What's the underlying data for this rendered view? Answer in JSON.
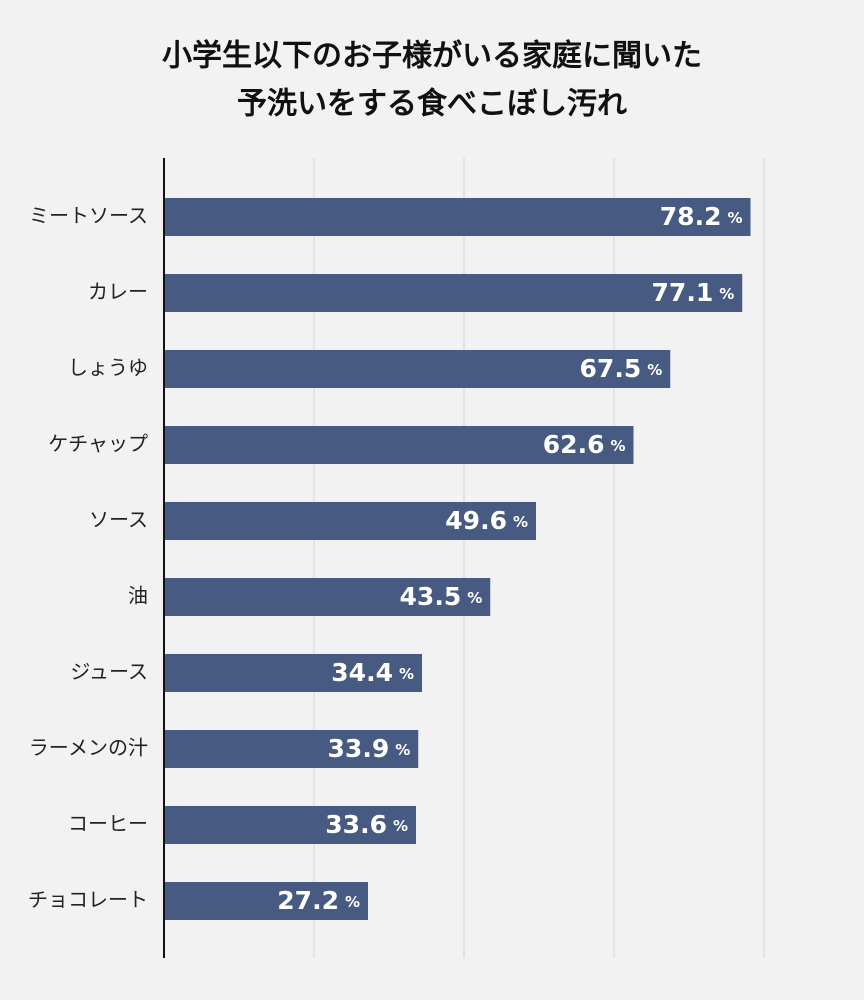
{
  "chart_data": {
    "type": "hbar",
    "title": [
      "小学生以下のお子様がいる家庭に聞いた",
      "予洗いをする食べこぼし汚れ"
    ],
    "categories": [
      "ミートソース",
      "カレー",
      "しょうゆ",
      "ケチャップ",
      "ソース",
      "油",
      "ジュース",
      "ラーメンの汁",
      "コーヒー",
      "チョコレート"
    ],
    "values": [
      78.2,
      77.1,
      67.5,
      62.6,
      49.6,
      43.5,
      34.4,
      33.9,
      33.6,
      27.2
    ],
    "unit": "%",
    "color": "#465a82",
    "xlim": [
      0,
      80
    ],
    "xticks": [
      0,
      20,
      40,
      60,
      80
    ],
    "grid": true
  }
}
